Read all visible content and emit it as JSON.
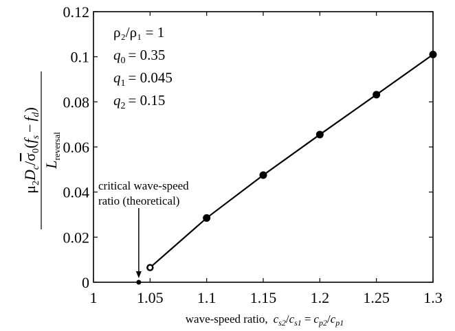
{
  "chart_data": {
    "type": "line",
    "x": [
      1.05,
      1.1,
      1.15,
      1.2,
      1.25,
      1.3
    ],
    "series": [
      {
        "values": [
          0.0065,
          0.0285,
          0.0475,
          0.0655,
          0.0832,
          0.101
        ]
      }
    ],
    "critical_point": {
      "x": 1.04,
      "y": 0
    },
    "xlim": [
      1,
      1.3
    ],
    "ylim": [
      0,
      0.12
    ],
    "x_ticks": [
      "1",
      "1.05",
      "1.1",
      "1.15",
      "1.2",
      "1.25",
      "1.3"
    ],
    "y_ticks": [
      "0",
      "0.02",
      "0.04",
      "0.06",
      "0.08",
      "0.1",
      "0.12"
    ],
    "grid": false,
    "xlabel": {
      "prefix": "wave-speed ratio,",
      "c": "c",
      "s2": "s2",
      "s1": "s1",
      "p2": "p2",
      "p1": "p1",
      "slash": "/",
      "equals": "="
    },
    "ylabel": {
      "mu": "μ",
      "mu_sub": "2",
      "D": "D",
      "D_sub": "c",
      "slash": "/",
      "sigma": "σ",
      "sigma_sub": "0",
      "open": "(",
      "f": "f",
      "fs_sub": "s",
      "minus": "−",
      "fd_sub": "d",
      "close": ")",
      "L": "L",
      "L_sub": "reversal"
    },
    "params": [
      {
        "text": "ρ₂/ρ₁ = 1"
      },
      {
        "sym": "q",
        "sub": "0",
        "value": "= 0.35"
      },
      {
        "sym": "q",
        "sub": "1",
        "value": "= 0.045"
      },
      {
        "sym": "q",
        "sub": "2",
        "value": "= 0.15"
      }
    ],
    "annotation": {
      "line1": "critical wave-speed",
      "line2": "ratio (theoretical)"
    }
  }
}
